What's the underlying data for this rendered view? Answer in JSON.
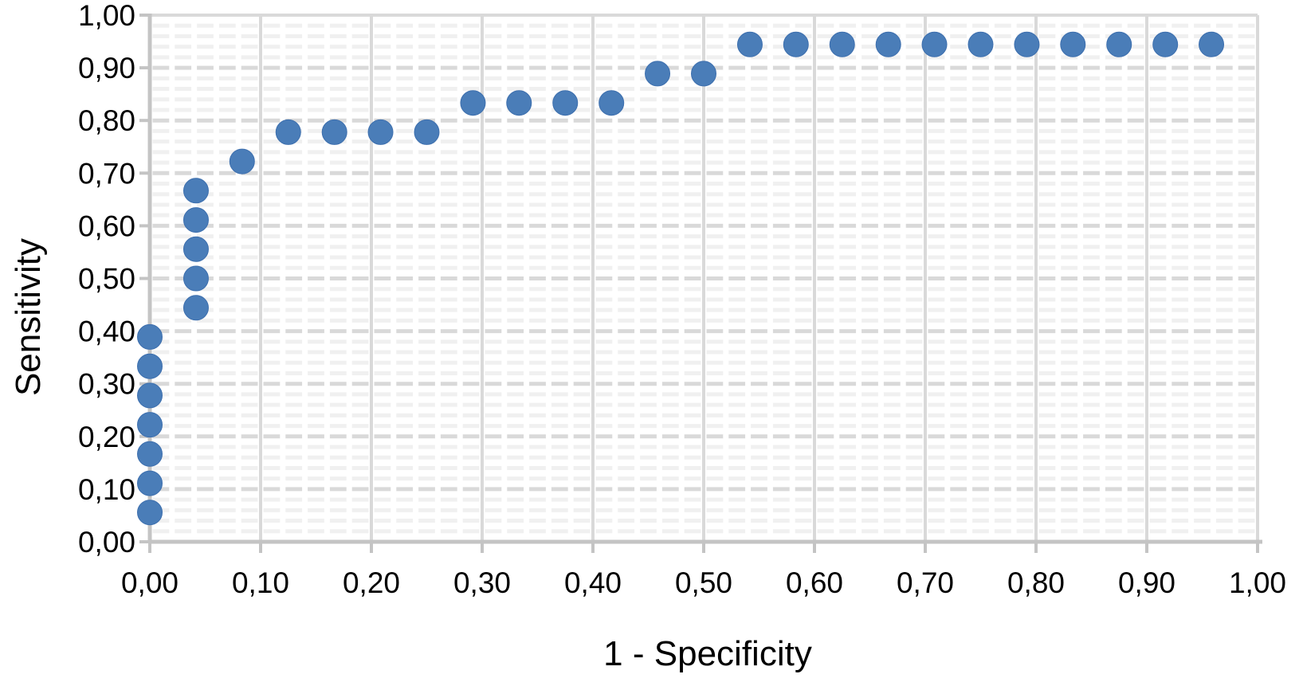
{
  "chart_data": {
    "type": "scatter",
    "title": "",
    "xlabel": "1 - Specificity",
    "ylabel": "Sensitivity",
    "xlim": [
      0,
      1
    ],
    "ylim": [
      0,
      1
    ],
    "x_ticks": [
      0,
      0.1,
      0.2,
      0.3,
      0.4,
      0.5,
      0.6,
      0.7,
      0.8,
      0.9,
      1.0
    ],
    "y_ticks": [
      0,
      0.1,
      0.2,
      0.3,
      0.4,
      0.5,
      0.6,
      0.7,
      0.8,
      0.9,
      1.0
    ],
    "x_tick_labels": [
      "0,00",
      "0,10",
      "0,20",
      "0,30",
      "0,40",
      "0,50",
      "0,60",
      "0,70",
      "0,80",
      "0,90",
      "1,00"
    ],
    "y_tick_labels": [
      "0,00",
      "0,10",
      "0,20",
      "0,30",
      "0,40",
      "0,50",
      "0,60",
      "0,70",
      "0,80",
      "0,90",
      "1,00"
    ],
    "decimal_separator": ",",
    "legend": "none",
    "grid": {
      "major": true,
      "minor": true,
      "minor_step": 0.02
    },
    "marker": {
      "shape": "circle",
      "radius": 15.5
    },
    "colors": {
      "point_fill": "#4a7db8",
      "point_edge": "#3d6fae",
      "major_grid": "#d9d9d9",
      "minor_grid": "#f0f0f0",
      "axis": "#c4c4c4",
      "text": "#000000",
      "background": "#ffffff"
    },
    "points": [
      {
        "x": 0.0,
        "y": 0.0556
      },
      {
        "x": 0.0,
        "y": 0.1111
      },
      {
        "x": 0.0,
        "y": 0.1667
      },
      {
        "x": 0.0,
        "y": 0.2222
      },
      {
        "x": 0.0,
        "y": 0.2778
      },
      {
        "x": 0.0,
        "y": 0.3333
      },
      {
        "x": 0.0,
        "y": 0.3889
      },
      {
        "x": 0.0417,
        "y": 0.4444
      },
      {
        "x": 0.0417,
        "y": 0.5
      },
      {
        "x": 0.0417,
        "y": 0.5556
      },
      {
        "x": 0.0417,
        "y": 0.6111
      },
      {
        "x": 0.0417,
        "y": 0.6667
      },
      {
        "x": 0.0833,
        "y": 0.7222
      },
      {
        "x": 0.125,
        "y": 0.7778
      },
      {
        "x": 0.1667,
        "y": 0.7778
      },
      {
        "x": 0.2083,
        "y": 0.7778
      },
      {
        "x": 0.25,
        "y": 0.7778
      },
      {
        "x": 0.2917,
        "y": 0.8333
      },
      {
        "x": 0.3333,
        "y": 0.8333
      },
      {
        "x": 0.375,
        "y": 0.8333
      },
      {
        "x": 0.4167,
        "y": 0.8333
      },
      {
        "x": 0.4583,
        "y": 0.8889
      },
      {
        "x": 0.5,
        "y": 0.8889
      },
      {
        "x": 0.5417,
        "y": 0.9444
      },
      {
        "x": 0.5833,
        "y": 0.9444
      },
      {
        "x": 0.625,
        "y": 0.9444
      },
      {
        "x": 0.6667,
        "y": 0.9444
      },
      {
        "x": 0.7083,
        "y": 0.9444
      },
      {
        "x": 0.75,
        "y": 0.9444
      },
      {
        "x": 0.7917,
        "y": 0.9444
      },
      {
        "x": 0.8333,
        "y": 0.9444
      },
      {
        "x": 0.875,
        "y": 0.9444
      },
      {
        "x": 0.9167,
        "y": 0.9444
      },
      {
        "x": 0.9583,
        "y": 0.9444
      }
    ]
  }
}
